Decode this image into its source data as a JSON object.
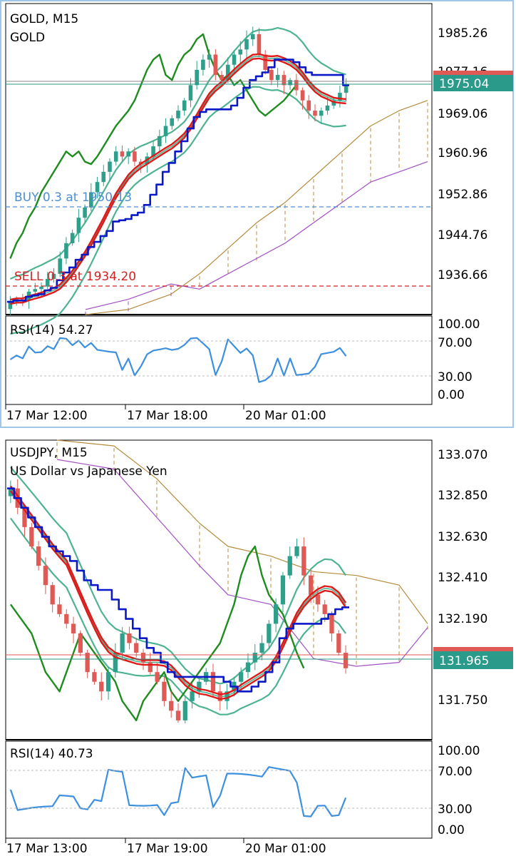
{
  "colors": {
    "frame_blue": "#9ec7ee",
    "bull": "#2e9f8a",
    "bear": "#e05a55",
    "tenkan_red": "#e01919",
    "kijun_blue": "#0a18c8",
    "chikou_green": "#1f8c1f",
    "bollinger": "#4db391",
    "cloud_a": "#b58b3c",
    "cloud_b": "#a14fc4",
    "rsi_line": "#3d8fe0",
    "buy_line": "#4d8fd6",
    "sell_line": "#d42121",
    "price_tag": "#2a9a8a"
  },
  "top_chart": {
    "symbol_line": "GOLD, M15",
    "name_line": "GOLD",
    "current_price": "1975.04",
    "price_axis": [
      "1985.26",
      "1977.16",
      "1969.06",
      "1960.96",
      "1952.86",
      "1944.76",
      "1936.66"
    ],
    "time_axis": [
      "17 Mar 12:00",
      "17 Mar 18:00",
      "20 Mar 01:00"
    ],
    "buy_label": "BUY 0.3 at 1950.13",
    "sell_label": "SELL 0.3 at 1934.20",
    "rsi_label": "RSI(14) 54.27",
    "rsi_axis": [
      "100.00",
      "70.00",
      "30.00",
      "0.00"
    ]
  },
  "bottom_chart": {
    "symbol_line": "USDJPY, M15",
    "name_line": "US Dollar vs Japanese Yen",
    "current_price": "131.965",
    "price_axis": [
      "133.070",
      "132.850",
      "132.630",
      "132.410",
      "132.190",
      "131.750"
    ],
    "time_axis": [
      "17 Mar 13:00",
      "17 Mar 19:00",
      "20 Mar 01:00"
    ],
    "rsi_label": "RSI(14) 40.73",
    "rsi_axis": [
      "100.00",
      "70.00",
      "30.00",
      "0.00"
    ]
  },
  "chart_data": [
    {
      "type": "candlestick",
      "title": "GOLD, M15",
      "subtitle": "GOLD",
      "ylim": [
        1930,
        1991
      ],
      "yticks": [
        1985.26,
        1977.16,
        1969.06,
        1960.96,
        1952.86,
        1944.76,
        1936.66
      ],
      "current_price": 1975.04,
      "orders": [
        {
          "label": "BUY 0.3 at 1950.13",
          "price": 1950.13
        },
        {
          "label": "SELL 0.3 at 1934.20",
          "price": 1934.2
        }
      ],
      "close_path": [
        1932.5,
        1933,
        1932.8,
        1934.5,
        1935,
        1935.5,
        1937,
        1938,
        1941,
        1944,
        1946,
        1949,
        1951,
        1954,
        1956,
        1958,
        1960,
        1962,
        1961,
        1962,
        1960,
        1959.5,
        1961,
        1963,
        1965,
        1967,
        1968.5,
        1970,
        1972,
        1975,
        1978,
        1980,
        1981,
        1977,
        1976,
        1979,
        1981,
        1982,
        1984,
        1985,
        1981,
        1978,
        1976,
        1977,
        1975,
        1976,
        1974,
        1972,
        1970,
        1969,
        1970,
        1971,
        1972,
        1973.5,
        1975
      ],
      "rsi": {
        "label": "RSI(14) 54.27",
        "last": 54.27,
        "ylim": [
          0,
          100
        ],
        "levels": [
          30,
          70
        ]
      }
    },
    {
      "type": "candlestick",
      "title": "USDJPY, M15",
      "subtitle": "US Dollar vs Japanese Yen",
      "ylim": [
        131.6,
        133.15
      ],
      "yticks": [
        133.07,
        132.85,
        132.63,
        132.41,
        132.19,
        131.75
      ],
      "current_price": 131.965,
      "close_path": [
        132.9,
        132.8,
        132.7,
        132.6,
        132.5,
        132.4,
        132.3,
        132.25,
        132.2,
        132.15,
        132.05,
        131.95,
        131.9,
        131.85,
        131.95,
        132.05,
        132.15,
        132.1,
        132.05,
        132.0,
        131.95,
        131.9,
        131.8,
        131.75,
        131.7,
        131.8,
        131.85,
        131.9,
        131.95,
        131.85,
        131.8,
        131.85,
        131.9,
        131.95,
        132.0,
        132.05,
        132.1,
        132.2,
        132.3,
        132.45,
        132.55,
        132.6,
        132.45,
        132.35,
        132.3,
        132.25,
        132.15,
        132.05,
        131.97
      ],
      "rsi": {
        "label": "RSI(14) 40.73",
        "last": 40.73,
        "ylim": [
          0,
          100
        ],
        "levels": [
          30,
          70
        ]
      }
    }
  ]
}
